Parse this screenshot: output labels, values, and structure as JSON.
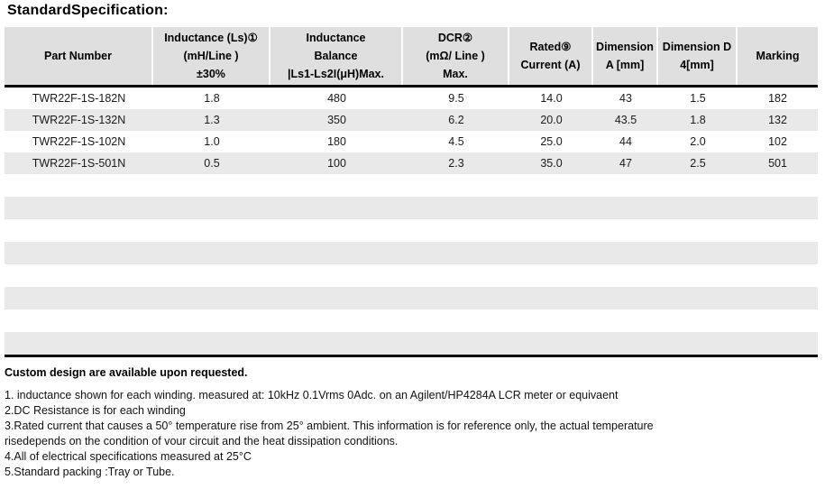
{
  "title": "StandardSpecification:",
  "table": {
    "headers": [
      {
        "lines": [
          "Part Number"
        ]
      },
      {
        "lines": [
          "Inductance (Ls)①",
          "(mH/Line )",
          "±30%"
        ]
      },
      {
        "lines": [
          "Inductance",
          "Balance",
          "|Ls1-Ls2I(μH)Max."
        ]
      },
      {
        "lines": [
          "DCR②",
          "(mΩ/ Line )",
          "Max."
        ]
      },
      {
        "lines": [
          "Rated⑨",
          "Current (A)"
        ]
      },
      {
        "lines": [
          "Dimension",
          "A [mm]"
        ]
      },
      {
        "lines": [
          "Dimension D",
          "4[mm]"
        ]
      },
      {
        "lines": [
          "Marking"
        ]
      }
    ],
    "rows": [
      [
        "TWR22F-1S-182N",
        "1.8",
        "480",
        "9.5",
        "14.0",
        "43",
        "1.5",
        "182"
      ],
      [
        "TWR22F-1S-132N",
        "1.3",
        "350",
        "6.2",
        "20.0",
        "43.5",
        "1.8",
        "132"
      ],
      [
        "TWR22F-1S-102N",
        "1.0",
        "180",
        "4.5",
        "25.0",
        "44",
        "2.0",
        "102"
      ],
      [
        "TWR22F-1S-501N",
        "0.5",
        "100",
        "2.3",
        "35.0",
        "47",
        "2.5",
        "501"
      ]
    ],
    "empty_row_count": 8
  },
  "notes": {
    "heading": "Custom design are available upon requested.",
    "lines": [
      "1. inductance shown for each winding. measured at: 10kHz 0.1Vrms 0Adc. on an Agilent/HP4284A LCR meter or equivaent",
      "2.DC Resistance is for each winding",
      "3.Rated current that causes a 50° temperature rise from 25° ambient. This information is for reference only, the actual temperature",
      "risedepends on the condition of vour circuit and the heat dissipation conditions.",
      "4.All of electrical specifications measured at 25°C",
      "5.Standard packing :Tray or Tube."
    ]
  },
  "colors": {
    "header_bg": "#dfdfdf",
    "stripe_bg": "#e9e9e9",
    "border": "#000000",
    "page_bg": "#ffffff"
  }
}
